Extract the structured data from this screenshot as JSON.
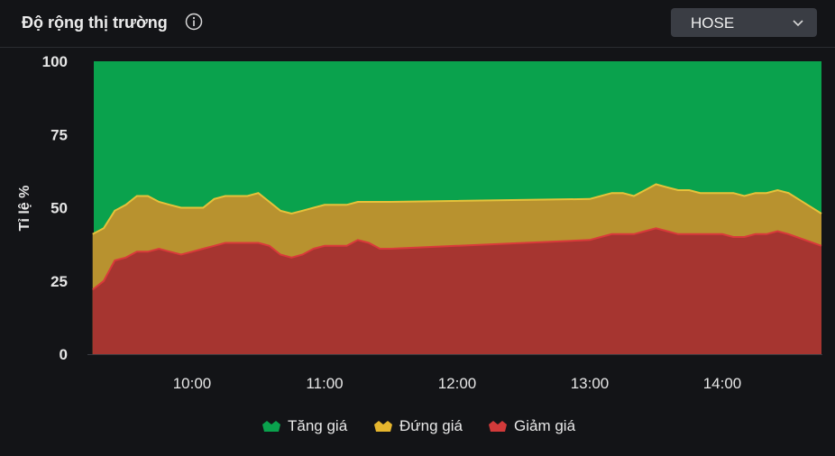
{
  "header": {
    "title": "Độ rộng thị trường",
    "info_icon": "info-icon",
    "exchange_select": {
      "selected": "HOSE",
      "icon": "chevron-down-icon"
    }
  },
  "legend": {
    "items": [
      {
        "label": "Tăng giá",
        "color": "#0aa24d",
        "icon": "crown-icon"
      },
      {
        "label": "Đứng giá",
        "color": "#e6b62e",
        "icon": "crown-icon"
      },
      {
        "label": "Giảm giá",
        "color": "#d23a3a",
        "icon": "crown-icon"
      }
    ]
  },
  "chart_data": {
    "type": "area",
    "stacked": true,
    "ylabel": "Tỉ lệ %",
    "xlabel": "",
    "ylim": [
      0,
      100
    ],
    "yticks": [
      0,
      25,
      50,
      75,
      100
    ],
    "xtick_labels": [
      "10:00",
      "11:00",
      "12:00",
      "13:00",
      "14:00"
    ],
    "xtick_times": [
      "10:00",
      "11:00",
      "12:00",
      "13:00",
      "14:00"
    ],
    "x_range": [
      "09:15",
      "14:45"
    ],
    "grid": false,
    "legend_position": "bottom",
    "colors": {
      "increase": "#0aa24d",
      "unchanged": "#b8922f",
      "decrease": "#a63530",
      "unchanged_line": "#e6c23a",
      "decrease_line": "#d93a3a"
    },
    "x": [
      "09:15",
      "09:20",
      "09:25",
      "09:30",
      "09:35",
      "09:40",
      "09:45",
      "09:50",
      "09:55",
      "10:00",
      "10:05",
      "10:10",
      "10:15",
      "10:20",
      "10:25",
      "10:30",
      "10:35",
      "10:40",
      "10:45",
      "10:50",
      "10:55",
      "11:00",
      "11:05",
      "11:10",
      "11:15",
      "11:20",
      "11:25",
      "11:30",
      "13:00",
      "13:05",
      "13:10",
      "13:15",
      "13:20",
      "13:25",
      "13:30",
      "13:35",
      "13:40",
      "13:45",
      "13:50",
      "13:55",
      "14:00",
      "14:05",
      "14:10",
      "14:15",
      "14:20",
      "14:25",
      "14:30",
      "14:45"
    ],
    "series": [
      {
        "name": "Giảm giá",
        "values": [
          22,
          25,
          32,
          33,
          35,
          35,
          36,
          35,
          34,
          35,
          36,
          37,
          38,
          38,
          38,
          38,
          37,
          34,
          33,
          34,
          36,
          37,
          37,
          37,
          39,
          38,
          36,
          36,
          39,
          40,
          41,
          41,
          41,
          42,
          43,
          42,
          41,
          41,
          41,
          41,
          41,
          40,
          40,
          41,
          41,
          42,
          41,
          37
        ]
      },
      {
        "name": "Đứng giá",
        "values": [
          19,
          18,
          17,
          18,
          19,
          19,
          16,
          16,
          16,
          15,
          14,
          16,
          16,
          16,
          16,
          17,
          15,
          15,
          15,
          15,
          14,
          14,
          14,
          14,
          13,
          14,
          16,
          16,
          14,
          14,
          14,
          14,
          13,
          14,
          15,
          15,
          15,
          15,
          14,
          14,
          14,
          15,
          14,
          14,
          14,
          14,
          14,
          11
        ]
      },
      {
        "name": "Tăng giá",
        "values": [
          59,
          57,
          51,
          49,
          46,
          46,
          48,
          49,
          50,
          50,
          50,
          47,
          46,
          46,
          46,
          45,
          48,
          51,
          52,
          51,
          50,
          49,
          49,
          49,
          48,
          48,
          48,
          48,
          47,
          46,
          45,
          45,
          46,
          44,
          42,
          43,
          44,
          44,
          45,
          45,
          45,
          45,
          46,
          45,
          45,
          44,
          45,
          52
        ]
      }
    ]
  }
}
